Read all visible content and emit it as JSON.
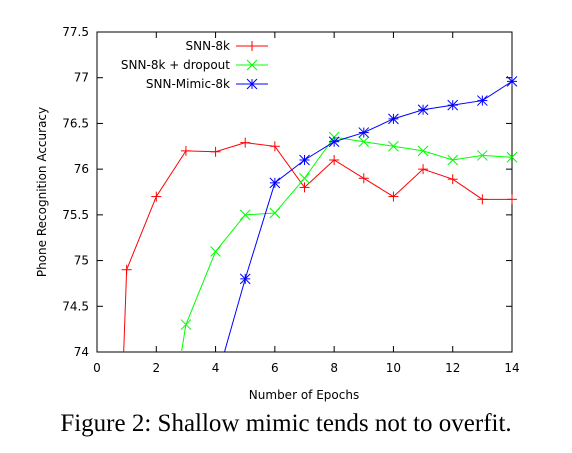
{
  "chart_data": {
    "type": "line",
    "xlabel": "Number of Epochs",
    "ylabel": "Phone Recognition Accuracy",
    "xlim": [
      0,
      14
    ],
    "ylim": [
      74,
      77.5
    ],
    "x_ticks": [
      "0",
      "2",
      "4",
      "6",
      "8",
      "10",
      "12",
      "14"
    ],
    "y_ticks": [
      "74",
      "74.5",
      "75",
      "75.5",
      "76",
      "76.5",
      "77",
      "77.5"
    ],
    "grid": false,
    "legend_position": "top-left",
    "series": [
      {
        "name": "SNN-8k",
        "color": "#ff0000",
        "marker": "plus",
        "x": [
          1,
          2,
          3,
          4,
          5,
          6,
          7,
          8,
          9,
          10,
          11,
          12,
          13,
          14
        ],
        "y": [
          74.9,
          75.7,
          76.2,
          76.19,
          76.29,
          76.25,
          75.8,
          76.1,
          75.9,
          75.7,
          76.0,
          75.89,
          75.67,
          75.67
        ],
        "enters_from_below": 0.9
      },
      {
        "name": "SNN-8k + dropout",
        "color": "#00ff00",
        "marker": "cross",
        "x": [
          3,
          4,
          5,
          6,
          7,
          8,
          9,
          10,
          11,
          12,
          13,
          14
        ],
        "y": [
          74.3,
          75.1,
          75.5,
          75.52,
          75.9,
          76.35,
          76.3,
          76.25,
          76.2,
          76.1,
          76.15,
          76.13
        ],
        "enters_from_below": 2.85
      },
      {
        "name": "SNN-Mimic-8k",
        "color": "#0000ff",
        "marker": "star",
        "x": [
          5,
          6,
          7,
          8,
          9,
          10,
          11,
          12,
          13,
          14
        ],
        "y": [
          74.8,
          75.85,
          76.1,
          76.3,
          76.4,
          76.55,
          76.65,
          76.7,
          76.75,
          76.96
        ],
        "enters_from_below": 4.3
      }
    ]
  },
  "caption": "Figure 2: Shallow mimic tends not to overfit."
}
